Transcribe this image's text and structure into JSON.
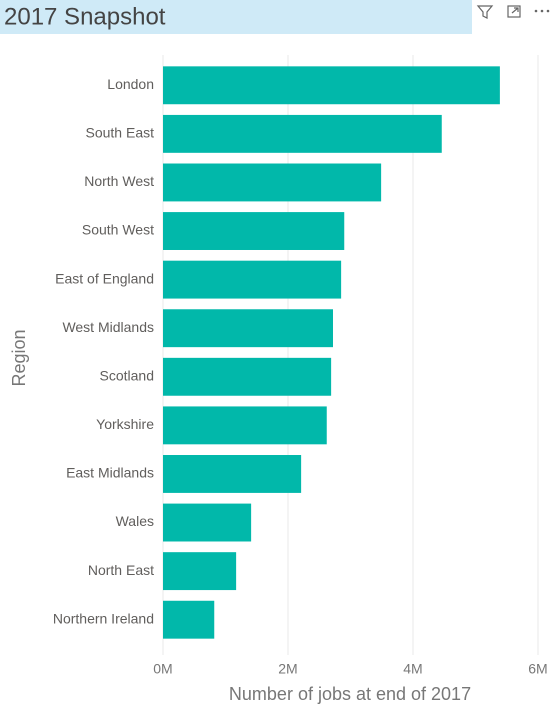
{
  "chart_data": {
    "type": "bar",
    "orientation": "horizontal",
    "title": "2017 Snapshot",
    "x_label": "Number of jobs at end of 2017",
    "y_label": "Region",
    "categories": [
      "London",
      "South East",
      "North West",
      "South West",
      "East of England",
      "West Midlands",
      "Scotland",
      "Yorkshire",
      "East Midlands",
      "Wales",
      "North East",
      "Northern Ireland"
    ],
    "values": [
      5390000,
      4460000,
      3490000,
      2900000,
      2850000,
      2720000,
      2690000,
      2620000,
      2210000,
      1410000,
      1170000,
      820000
    ],
    "color": "#01b8aa",
    "xlim": [
      0,
      6000000
    ],
    "xticks": [
      {
        "value": 0,
        "label": "0M"
      },
      {
        "value": 2000000,
        "label": "2M"
      },
      {
        "value": 4000000,
        "label": "4M"
      },
      {
        "value": 6000000,
        "label": "6M"
      }
    ],
    "grid": true
  }
}
